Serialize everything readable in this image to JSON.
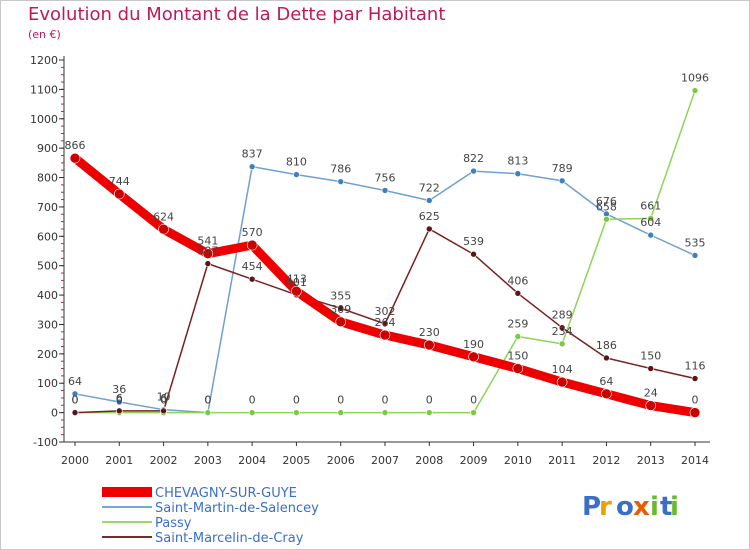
{
  "title": "Evolution du Montant de la Dette par Habitant",
  "subtitle": "(en €)",
  "brand": "Proxiti",
  "chart_data": {
    "type": "line",
    "x": [
      2000,
      2001,
      2002,
      2003,
      2004,
      2005,
      2006,
      2007,
      2008,
      2009,
      2010,
      2011,
      2012,
      2013,
      2014
    ],
    "ylim": [
      -100,
      1200
    ],
    "yticks": [
      -100,
      0,
      100,
      200,
      300,
      400,
      500,
      600,
      700,
      800,
      900,
      1000,
      1100,
      1200
    ],
    "grid": false,
    "legend_position": "bottom",
    "series": [
      {
        "name": "CHEVAGNY-SUR-GUYE",
        "color": "#ee0000",
        "width": 9,
        "values": [
          866,
          744,
          624,
          541,
          570,
          413,
          309,
          264,
          230,
          190,
          150,
          104,
          64,
          24,
          0
        ]
      },
      {
        "name": "Saint-Martin-de-Salencey",
        "color": "#6fa0d0",
        "width": 1.5,
        "values": [
          64,
          36,
          10,
          0,
          837,
          810,
          786,
          756,
          722,
          822,
          813,
          789,
          676,
          604,
          535
        ]
      },
      {
        "name": "Passy",
        "color": "#8fd35a",
        "width": 1.5,
        "values": [
          0,
          0,
          0,
          0,
          0,
          0,
          0,
          0,
          0,
          0,
          259,
          234,
          658,
          661,
          1096
        ]
      },
      {
        "name": "Saint-Marcelin-de-Cray",
        "color": "#7a2020",
        "width": 1.5,
        "values": [
          0,
          6,
          6,
          507,
          454,
          401,
          355,
          302,
          625,
          539,
          406,
          289,
          186,
          150,
          116
        ]
      }
    ],
    "marker_colors": [
      "#cc0000",
      "#3d7fc4",
      "#7ac943",
      "#5a1414"
    ],
    "legend_colors": [
      "#ee0000",
      "#7aa8d6",
      "#9ad86a",
      "#7a2a2a"
    ]
  }
}
